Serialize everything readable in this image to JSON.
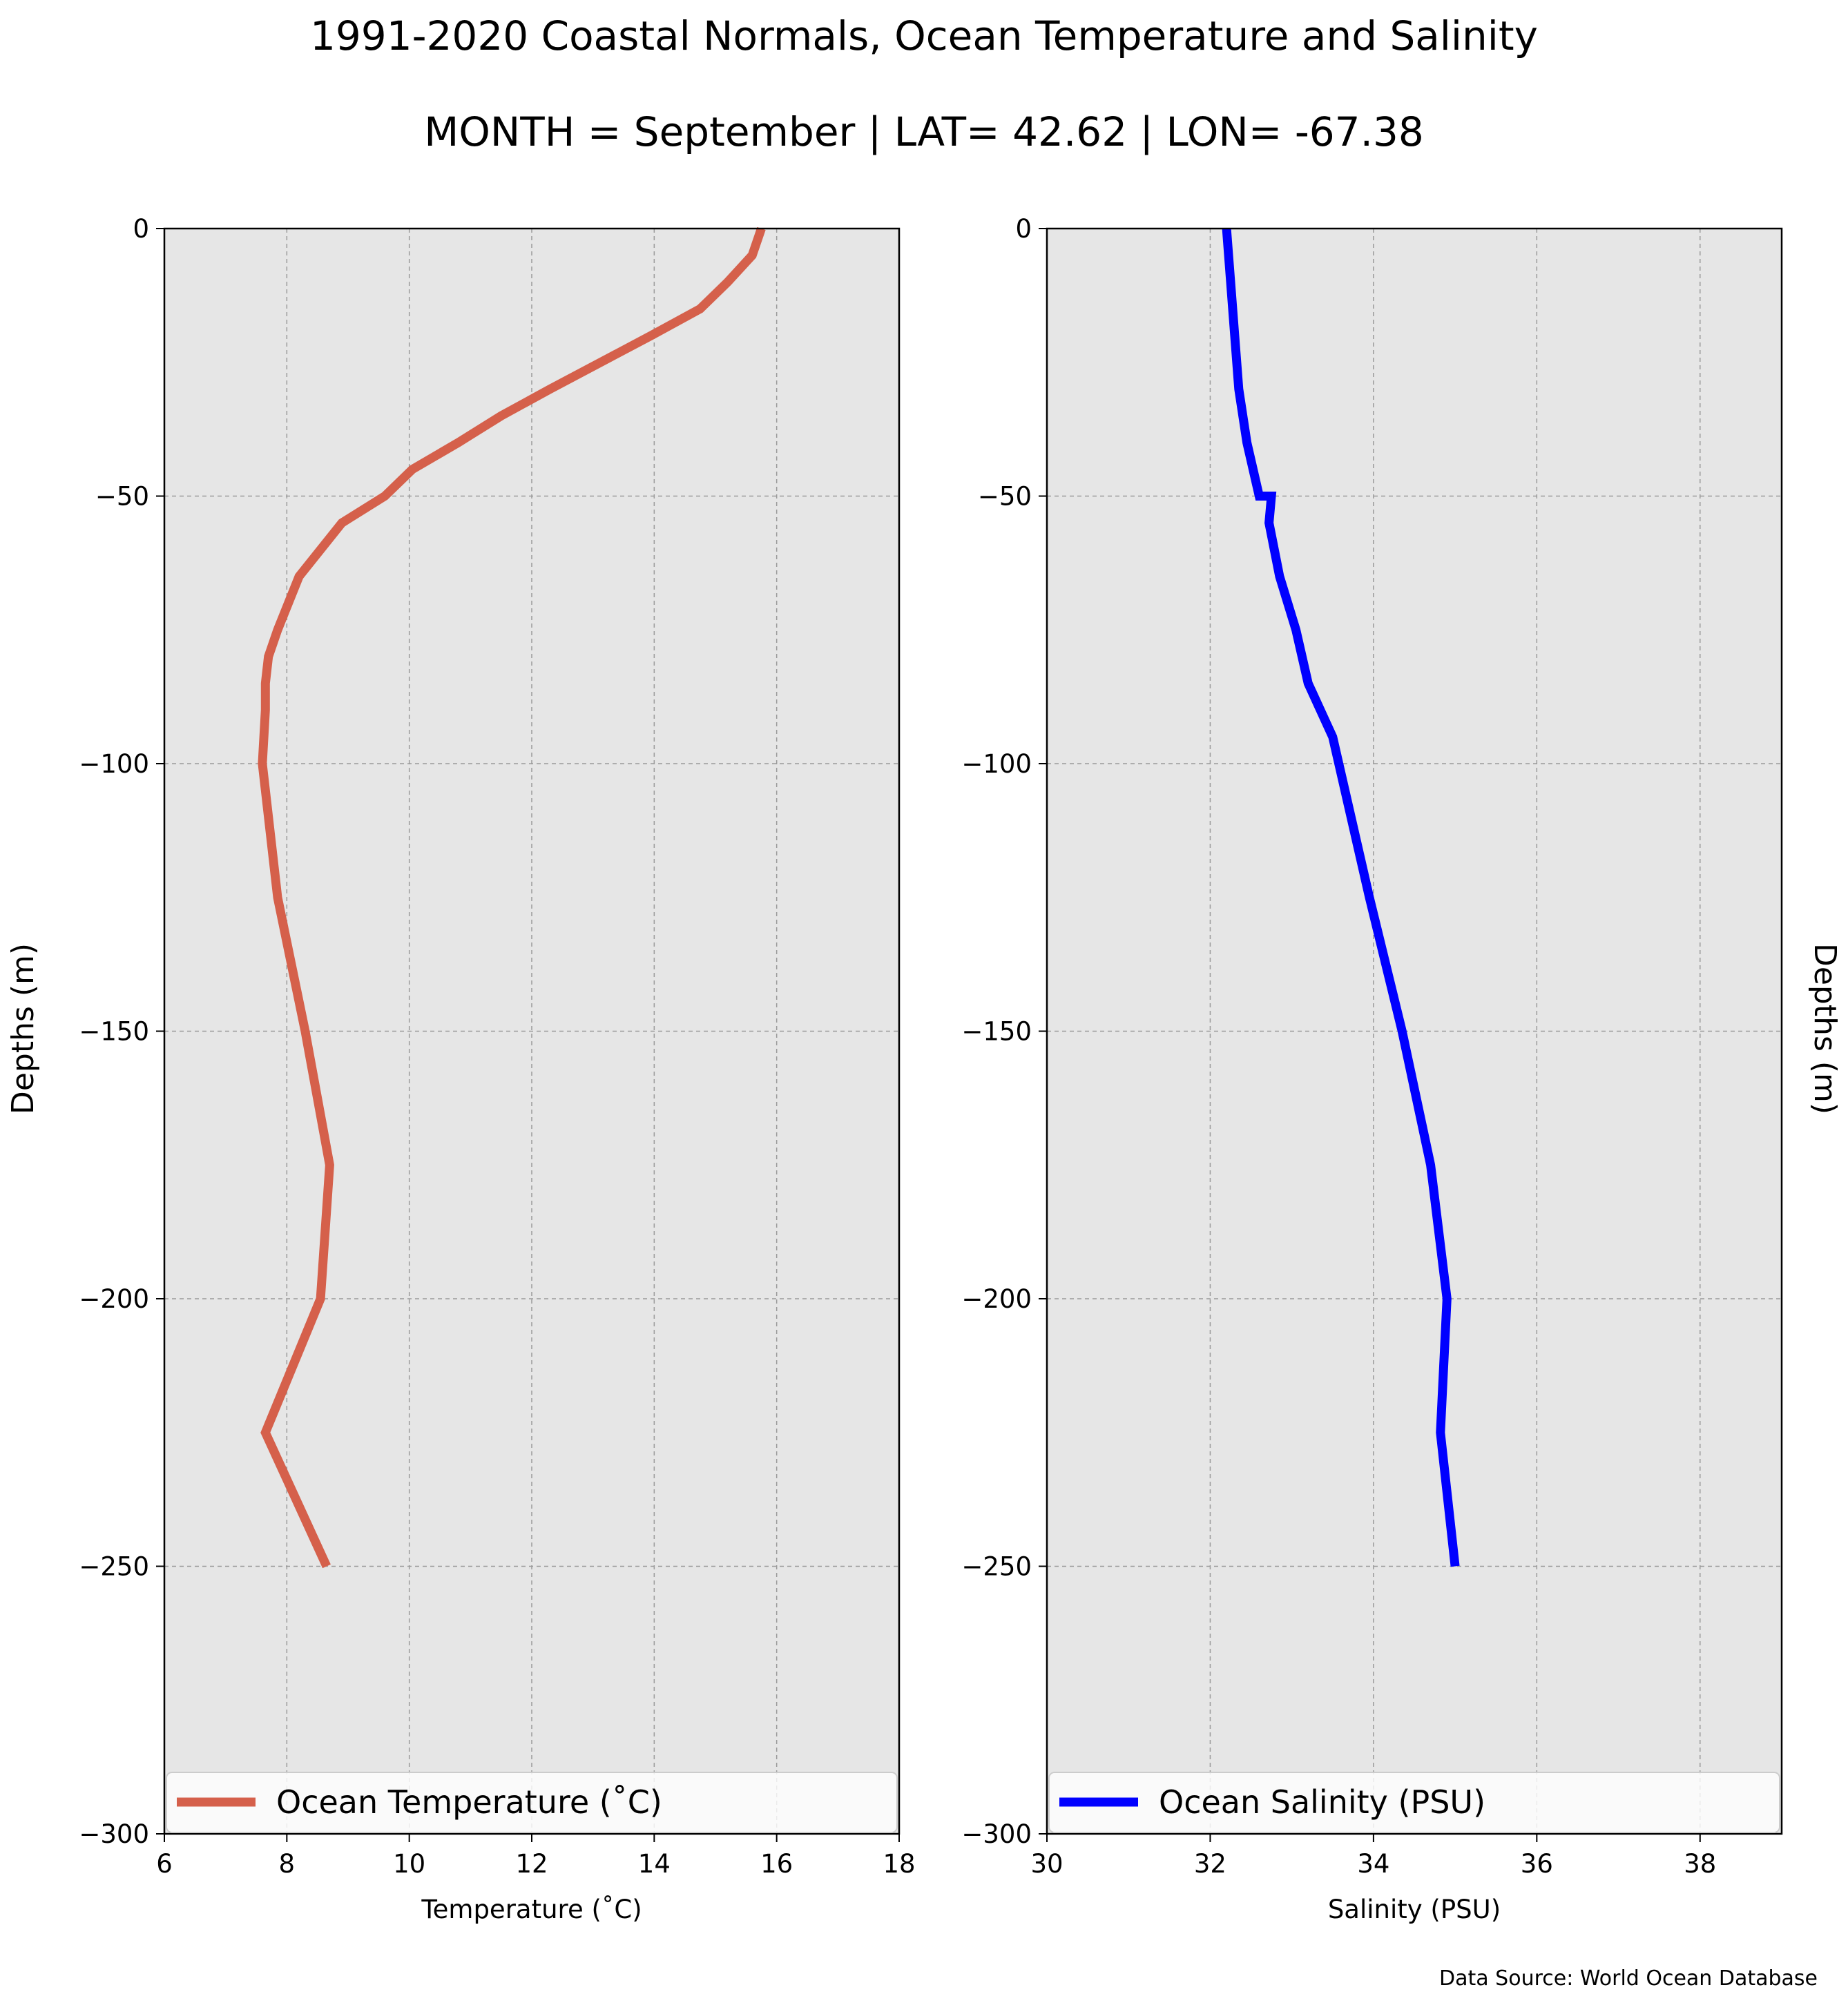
{
  "figure": {
    "title_line1": "1991-2020 Coastal Normals, Ocean Temperature and Salinity",
    "title_line2": "MONTH = September | LAT= 42.62 | LON= -67.38",
    "source_note": "Data Source: World Ocean Database",
    "background": "#e6e6e6"
  },
  "chart_data": [
    {
      "type": "line",
      "panel": "left",
      "xlabel": "Temperature (˚C)",
      "ylabel": "Depths (m)",
      "xlim": [
        6,
        18
      ],
      "ylim": [
        -300,
        0
      ],
      "xticks": [
        6,
        8,
        10,
        12,
        14,
        16,
        18
      ],
      "xtick_labels": [
        "6",
        "8",
        "10",
        "12",
        "14",
        "16",
        "18"
      ],
      "yticks": [
        0,
        -50,
        -100,
        -150,
        -200,
        -250,
        -300
      ],
      "ytick_labels": [
        "0",
        "−50",
        "−100",
        "−150",
        "−200",
        "−250",
        "−300"
      ],
      "grid": true,
      "legend_position": "bottom",
      "series": [
        {
          "name": "Ocean Temperature (˚C)",
          "color": "#d5604b",
          "x": [
            15.75,
            15.6,
            15.2,
            14.75,
            13.95,
            12.3,
            11.5,
            10.8,
            10.05,
            9.6,
            8.9,
            8.2,
            7.85,
            7.7,
            7.65,
            7.65,
            7.6,
            7.85,
            8.3,
            8.7,
            8.55,
            7.65,
            8.65
          ],
          "y": [
            0,
            -5,
            -10,
            -15,
            -20,
            -30,
            -35,
            -40,
            -45,
            -50,
            -55,
            -65,
            -75,
            -80,
            -85,
            -90,
            -100,
            -125,
            -150,
            -175,
            -200,
            -225,
            -250
          ]
        }
      ]
    },
    {
      "type": "line",
      "panel": "right",
      "xlabel": "Salinity (PSU)",
      "ylabel": "Depths (m)",
      "xlim": [
        30,
        39
      ],
      "ylim": [
        -300,
        0
      ],
      "xticks": [
        30,
        32,
        34,
        36,
        38
      ],
      "xtick_labels": [
        "30",
        "32",
        "34",
        "36",
        "38"
      ],
      "yticks": [
        0,
        -50,
        -100,
        -150,
        -200,
        -250,
        -300
      ],
      "ytick_labels": [
        "0",
        "−50",
        "−100",
        "−150",
        "−200",
        "−250",
        "−300"
      ],
      "grid": true,
      "legend_position": "bottom",
      "series": [
        {
          "name": "Ocean Salinity (PSU)",
          "color": "#0000ff",
          "x": [
            32.2,
            32.25,
            32.3,
            32.35,
            32.45,
            32.6,
            32.75,
            32.72,
            32.85,
            33.05,
            33.2,
            33.5,
            33.95,
            34.35,
            34.7,
            34.9,
            34.82,
            35.0
          ],
          "y": [
            0,
            -10,
            -20,
            -30,
            -40,
            -50,
            -50,
            -55,
            -65,
            -75,
            -85,
            -95,
            -125,
            -150,
            -175,
            -200,
            -225,
            -250
          ]
        }
      ]
    }
  ]
}
